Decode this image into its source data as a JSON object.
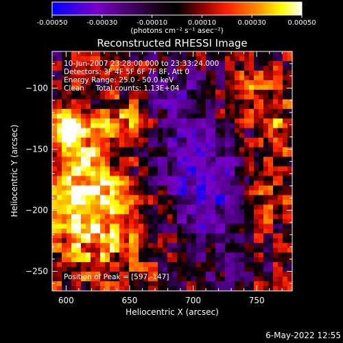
{
  "chart_data": {
    "type": "heatmap",
    "title": "Reconstructed RHESSI Image",
    "xlabel": "Heliocentric X (arcsec)",
    "ylabel": "Heliocentric Y (arcsec)",
    "xlim": [
      589,
      778
    ],
    "ylim": [
      -266,
      -70
    ],
    "x_ticks": [
      600,
      650,
      700,
      750
    ],
    "y_ticks": [
      -100,
      -150,
      -200,
      -250
    ],
    "colorbar": {
      "range": [
        -0.0005,
        0.0005
      ],
      "ticks": [
        "-0.00050",
        "-0.00030",
        "-0.00010",
        "0.00010",
        "0.00030",
        "0.00050"
      ],
      "unit_label": "(photons cm⁻² s⁻¹ asec⁻²)",
      "palette": [
        "#0000ff",
        "#7a00c8",
        "#1a001a",
        "#000000",
        "#8b0000",
        "#ff2000",
        "#ff8a00",
        "#ffff00",
        "#ffffff"
      ]
    },
    "annotations": [
      "10-Jun-2007 23:28:00.000 to 23:33:24.000",
      "Detectors: 3F 4F 5F 6F 7F 8F, Att 0",
      "Energy Range: 25.0 - 50.0 keV",
      "Clean     Total counts: 1.13E+04"
    ],
    "peak_label": "Position of Peak = [597,-147]",
    "peak": [
      597,
      -147
    ]
  },
  "footer": {
    "date": "6-May-2022 12:55"
  }
}
